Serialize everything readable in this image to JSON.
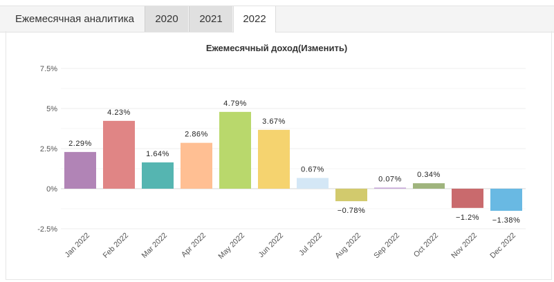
{
  "tabs": {
    "section_title": "Ежемесячная аналитика",
    "years": [
      "2020",
      "2021",
      "2022"
    ],
    "active": "2022"
  },
  "chart_data": {
    "type": "bar",
    "title": "Ежемесячный доход(Изменить)",
    "xlabel": "",
    "ylabel": "",
    "categories": [
      "Jan 2022",
      "Feb 2022",
      "Mar 2022",
      "Apr 2022",
      "May 2022",
      "Jun 2022",
      "Jul 2022",
      "Aug 2022",
      "Sep 2022",
      "Oct 2022",
      "Nov 2022",
      "Dec 2022"
    ],
    "values": [
      2.29,
      4.23,
      1.64,
      2.86,
      4.79,
      3.67,
      0.67,
      -0.78,
      0.07,
      0.34,
      -1.2,
      -1.38
    ],
    "data_labels": [
      "2.29%",
      "4.23%",
      "1.64%",
      "2.86%",
      "4.79%",
      "3.67%",
      "0.67%",
      "−0.78%",
      "0.07%",
      "0.34%",
      "−1.2%",
      "−1.38%"
    ],
    "colors": [
      "#b184b6",
      "#e08585",
      "#55b5b1",
      "#ffbf93",
      "#b9d86c",
      "#f5d36f",
      "#d4e7f6",
      "#d2ca6d",
      "#c7a8d8",
      "#9fb47d",
      "#c96a6d",
      "#69b9e3"
    ],
    "ylim": [
      -2.5,
      7.5
    ],
    "yticks": [
      7.5,
      5,
      2.5,
      0,
      -2.5
    ],
    "ytick_labels": [
      "7.5%",
      "5%",
      "2.5%",
      "0%",
      "-2.5%"
    ],
    "grid": true,
    "legend": "none"
  }
}
